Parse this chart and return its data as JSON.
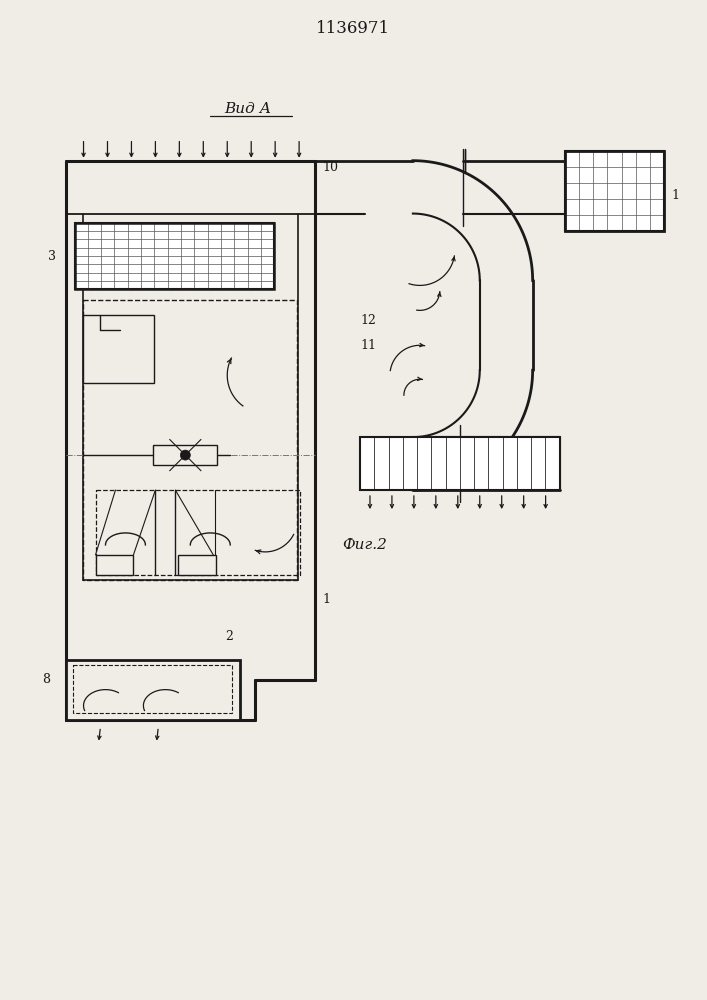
{
  "title": "1136971",
  "view_label": "Вид А",
  "fig_label": "Фиг.2",
  "bg_color": "#f0ede6",
  "line_color": "#1a1a1a",
  "figsize": [
    7.07,
    10.0
  ],
  "dpi": 100
}
